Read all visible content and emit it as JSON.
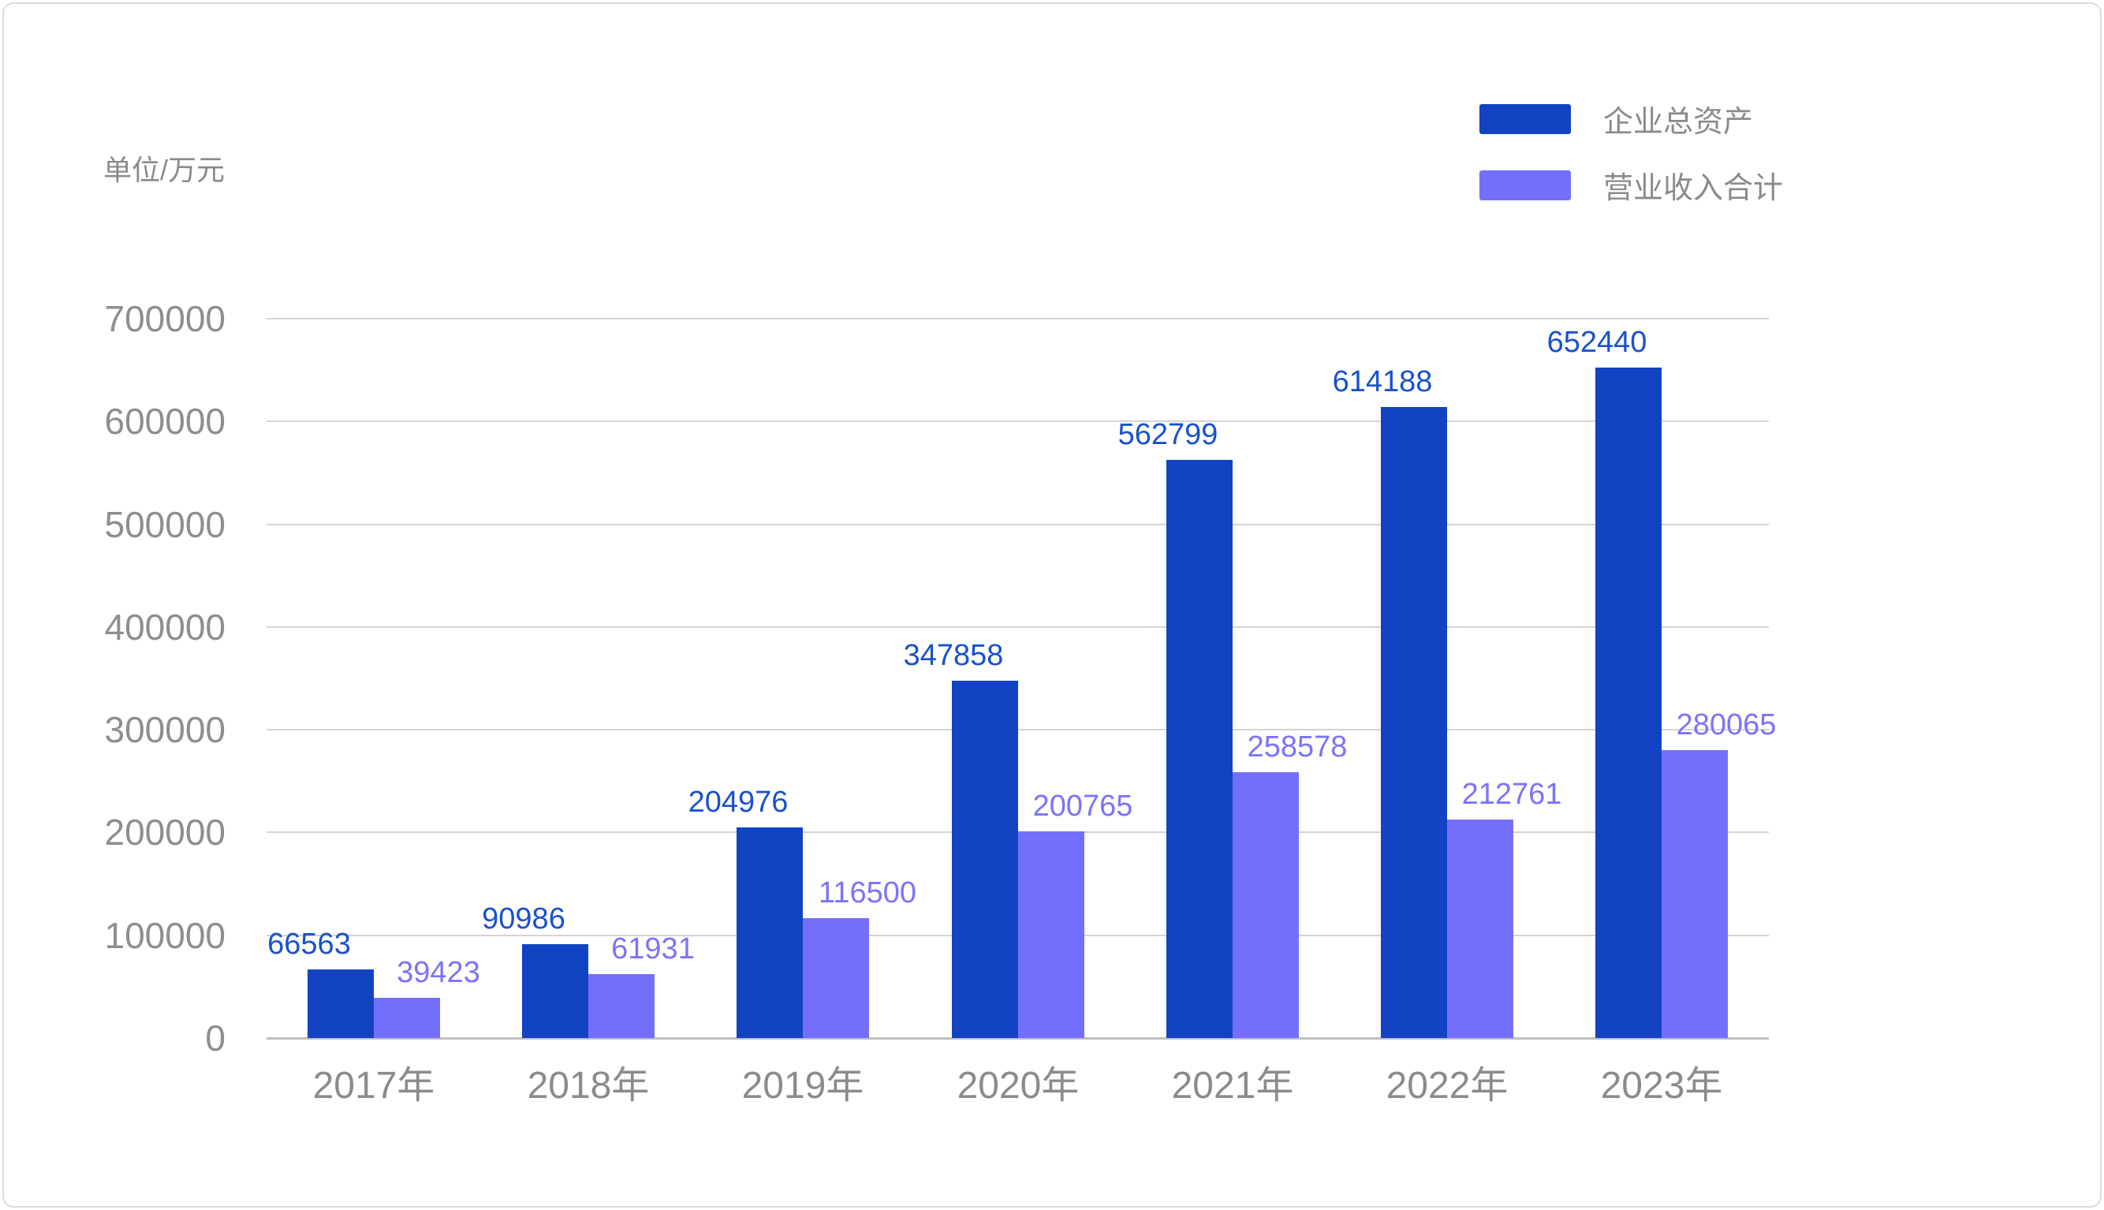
{
  "unit_label": "单位/万元",
  "legend": [
    {
      "label": "企业总资产",
      "color": "#1243c2"
    },
    {
      "label": "营业收入合计",
      "color": "#746ffa"
    }
  ],
  "colors": {
    "series1_bar": "#1243c2",
    "series1_label": "#1a52cc",
    "series2_bar": "#746ffa",
    "series2_label": "#7b74f8",
    "grid_line": "#d4d4d4",
    "axis_line": "#c0c0c0",
    "axis_text": "#8b8b8b"
  },
  "chart_data": {
    "type": "bar",
    "title": "",
    "xlabel": "",
    "ylabel": "单位/万元",
    "categories": [
      "2017年",
      "2018年",
      "2019年",
      "2020年",
      "2021年",
      "2022年",
      "2023年"
    ],
    "series": [
      {
        "name": "企业总资产",
        "color": "#1243c2",
        "label_color": "#1a52cc",
        "values": [
          66563,
          90986,
          204976,
          347858,
          562799,
          614188,
          652440
        ]
      },
      {
        "name": "营业收入合计",
        "color": "#746ffa",
        "label_color": "#7b74f8",
        "values": [
          39423,
          61931,
          116500,
          200765,
          258578,
          212761,
          280065
        ]
      }
    ],
    "ylim": [
      0,
      700000
    ],
    "ytick_step": 100000,
    "yticks": [
      0,
      100000,
      200000,
      300000,
      400000,
      500000,
      600000,
      700000
    ],
    "grid": true,
    "legend_position": "top-right",
    "value_labels": true
  }
}
